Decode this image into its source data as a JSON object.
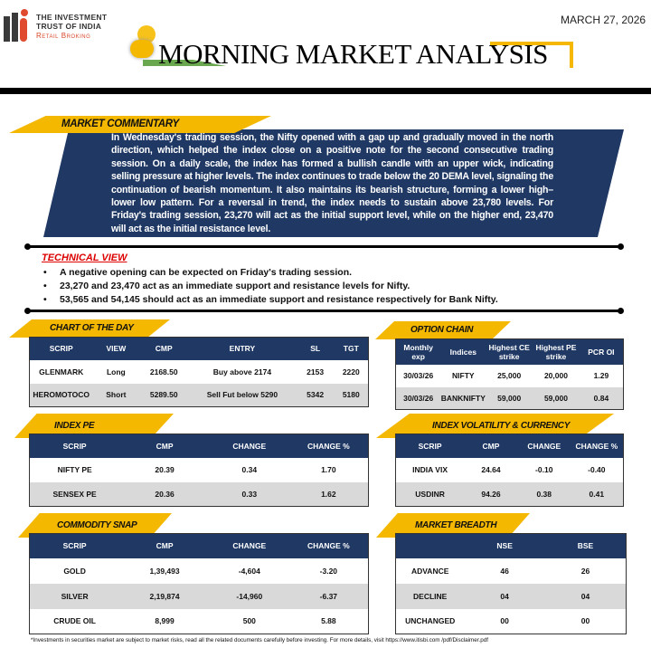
{
  "header": {
    "logo_line1": "THE INVESTMENT",
    "logo_line2": "TRUST OF INDIA",
    "logo_line3": "Retail Broking",
    "title": "MORNING MARKET ANALYSIS",
    "date": "MARCH 27, 2026"
  },
  "colors": {
    "navy": "#1f3864",
    "yellow": "#f5b800",
    "alt_row": "#d9d9d9",
    "technical_title": "#dd0000"
  },
  "commentary": {
    "label": "MARKET COMMENTARY",
    "text": "In Wednesday's trading session, the Nifty opened with a gap up and gradually moved in the north direction, which helped the index close on a positive note for the second consecutive trading session. On a daily scale, the index has formed a bullish candle with an upper wick, indicating selling pressure at higher levels. The index continues to trade below the 20 DEMA level, signaling the continuation of bearish momentum. It also maintains its bearish structure, forming a lower high–lower low pattern. For a reversal in trend, the index needs to sustain above 23,780 levels. For Friday's trading session, 23,270 will act as the initial support level, while on the higher end, 23,470 will act as the initial resistance level."
  },
  "technical_view": {
    "title": "TECHNICAL VIEW",
    "bullets": [
      "A negative opening  can be expected on Friday's trading  session.",
      "23,270 and 23,470 act as an immediate support  and  resistance levels for Nifty.",
      "53,565 and 54,145 should  act as an immediate support  and resistance respectively  for Bank Nifty."
    ]
  },
  "tables": {
    "chart_of_day": {
      "label": "CHART OF THE DAY",
      "headers": [
        "SCRIP",
        "VIEW",
        "CMP",
        "ENTRY",
        "SL",
        "TGT"
      ],
      "rows": [
        [
          "GLENMARK",
          "Long",
          "2168.50",
          "Buy above 2174",
          "2153",
          "2220"
        ],
        [
          "HEROMOTOCO",
          "Short",
          "5289.50",
          "Sell Fut below 5290",
          "5342",
          "5180"
        ]
      ]
    },
    "option_chain": {
      "label": "OPTION CHAIN",
      "headers": [
        "Monthly exp",
        "Indices",
        "Highest CE strike",
        "Highest PE strike",
        "PCR OI"
      ],
      "rows": [
        [
          "30/03/26",
          "NIFTY",
          "25,000",
          "20,000",
          "1.29"
        ],
        [
          "30/03/26",
          "BANKNIFTY",
          "59,000",
          "59,000",
          "0.84"
        ]
      ]
    },
    "index_pe": {
      "label": "INDEX PE",
      "headers": [
        "SCRIP",
        "CMP",
        "CHANGE",
        "CHANGE %"
      ],
      "rows": [
        [
          "NIFTY  PE",
          "20.39",
          "0.34",
          "1.70"
        ],
        [
          "SENSEX  PE",
          "20.36",
          "0.33",
          "1.62"
        ]
      ]
    },
    "volatility": {
      "label": "INDEX VOLATILITY & CURRENCY",
      "headers": [
        "SCRIP",
        "CMP",
        "CHANGE",
        "CHANGE %"
      ],
      "rows": [
        [
          "INDIA  VIX",
          "24.64",
          "-0.10",
          "-0.40"
        ],
        [
          "USDINR",
          "94.26",
          "0.38",
          "0.41"
        ]
      ]
    },
    "commodity": {
      "label": "COMMODITY SNAP",
      "headers": [
        "SCRIP",
        "CMP",
        "CHANGE",
        "CHANGE %"
      ],
      "rows": [
        [
          "GOLD",
          "1,39,493",
          "-4,604",
          "-3.20"
        ],
        [
          "SILVER",
          "2,19,874",
          "-14,960",
          "-6.37"
        ],
        [
          "CRUDE OIL",
          "8,999",
          "500",
          "5.88"
        ]
      ]
    },
    "breadth": {
      "label": "MARKET BREADTH",
      "headers": [
        "",
        "NSE",
        "BSE"
      ],
      "rows": [
        [
          "ADVANCE",
          "46",
          "26"
        ],
        [
          "DECLINE",
          "04",
          "04"
        ],
        [
          "UNCHANGED",
          "00",
          "00"
        ]
      ]
    }
  },
  "footer": "*Investments  in securities  market are subject  to market risks, read all the related documents  carefully before investing.  For more details,  visit https://www.itisbi.com /pdf/Disclaimer.pdf"
}
